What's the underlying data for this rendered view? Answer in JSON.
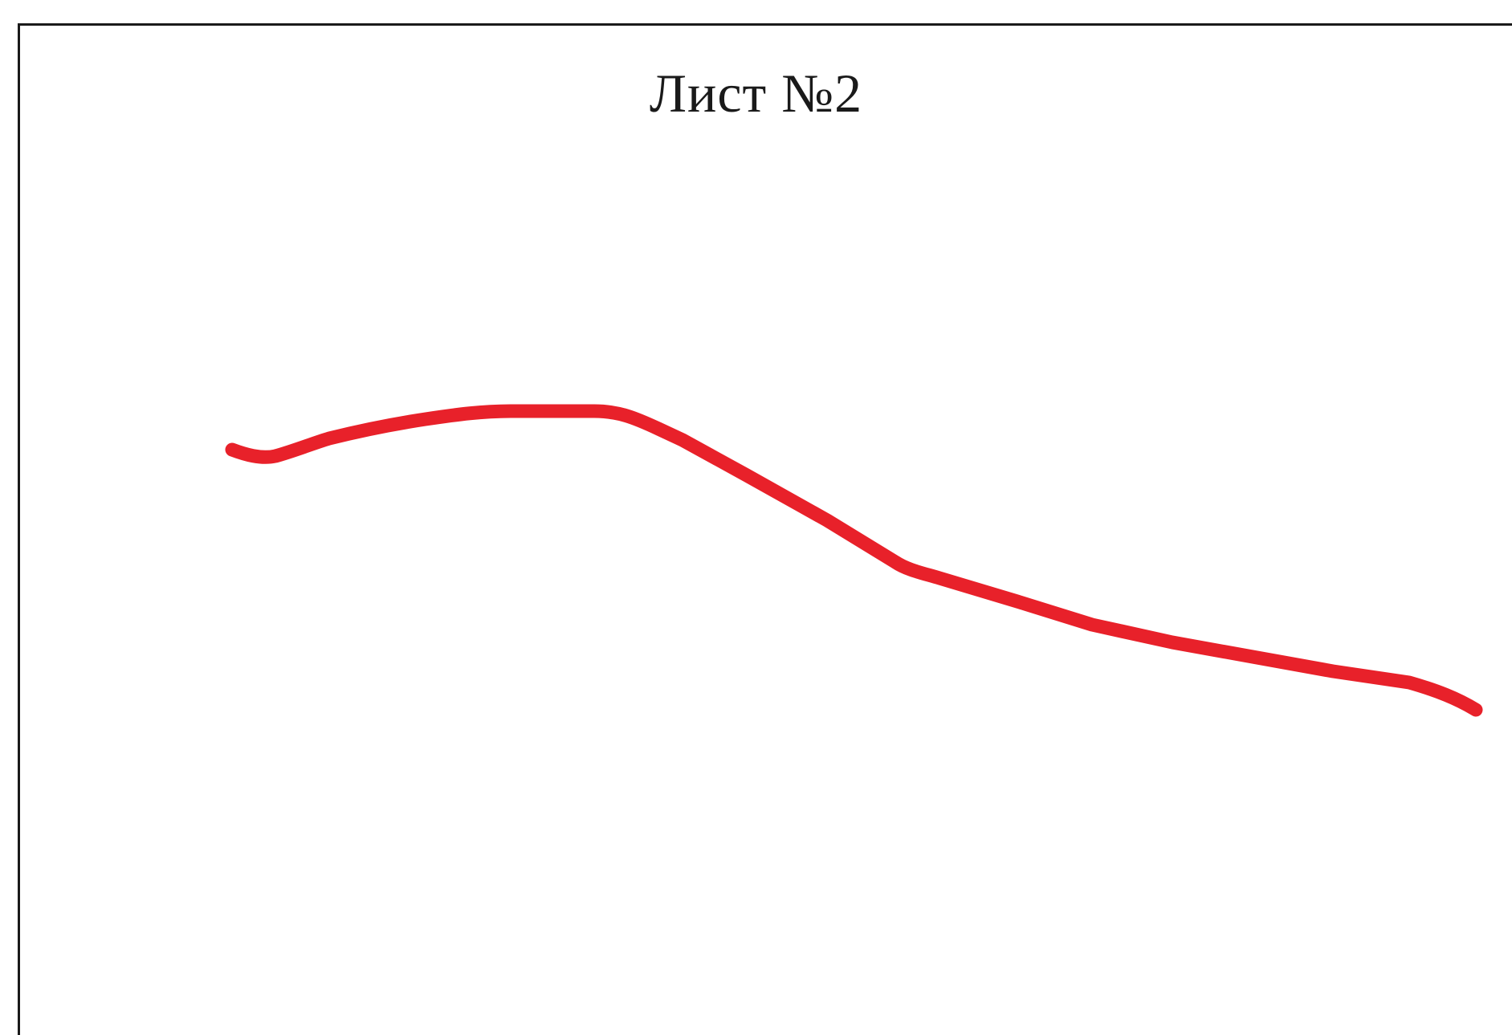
{
  "sheet": {
    "title": "Лист №2",
    "stroke_color": "#e8212a",
    "border_color": "#1a1a1a"
  }
}
